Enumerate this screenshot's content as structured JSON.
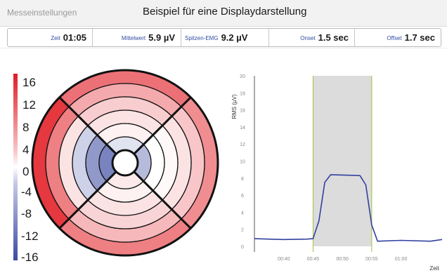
{
  "header": {
    "menu_label": "Messeinstellungen",
    "title": "Beispiel für eine Displaydarstellung"
  },
  "stats": [
    {
      "label": "Zeit",
      "value": "01:05"
    },
    {
      "label": "Mittelwert",
      "value": "5.9 µV"
    },
    {
      "label": "Spitzen-EMG",
      "value": "9.2 µV"
    },
    {
      "label": "Onset",
      "value": "1.5 sec"
    },
    {
      "label": "Offset",
      "value": "1.7 sec"
    }
  ],
  "colors": {
    "positive": "#e11b23",
    "negative": "#3b4aa2",
    "trace": "#3340a0",
    "window": "#dcdcdc",
    "window_edge": "#9ec23c"
  },
  "legend": {
    "ticks": [
      "16",
      "12",
      "8",
      "4",
      "0",
      "-4",
      "-8",
      "-12",
      "-16"
    ],
    "range": [
      -16,
      16
    ]
  },
  "bullseye": {
    "ring_count": 6,
    "sectors": [
      "top",
      "right",
      "bottom",
      "left"
    ],
    "values": {
      "top": [
        10,
        6,
        3.5,
        2,
        1,
        -2.5
      ],
      "right": [
        8,
        4,
        2,
        0.5,
        0,
        -6
      ],
      "bottom": [
        9,
        5,
        3,
        2,
        1,
        1.5
      ],
      "left": [
        14,
        9,
        2,
        -4,
        -9,
        -11
      ]
    }
  },
  "chart_data": {
    "type": "line",
    "ylabel": "RMS (µV)",
    "xlabel": "Zeit",
    "ylim": [
      0,
      20
    ],
    "yticks": [
      "0",
      "2",
      "4",
      "6",
      "8",
      "10",
      "12",
      "14",
      "16",
      "18",
      "20"
    ],
    "xlim": [
      "00:35",
      "01:07"
    ],
    "xticks": [
      "00:40",
      "00:45",
      "00:50",
      "00:55",
      "01:00"
    ],
    "active_window": [
      "00:45",
      "00:55"
    ],
    "series": [
      {
        "x": [
          "00:35",
          "00:40",
          "00:44",
          "00:45",
          "00:46",
          "00:47",
          "00:48",
          "00:53",
          "00:54",
          "00:55",
          "00:56",
          "01:00",
          "01:05",
          "01:07"
        ],
        "values": [
          0.9,
          0.8,
          0.85,
          0.9,
          3,
          7.5,
          8.4,
          8.3,
          7.2,
          2.5,
          0.6,
          0.7,
          0.6,
          0.8
        ]
      }
    ]
  }
}
